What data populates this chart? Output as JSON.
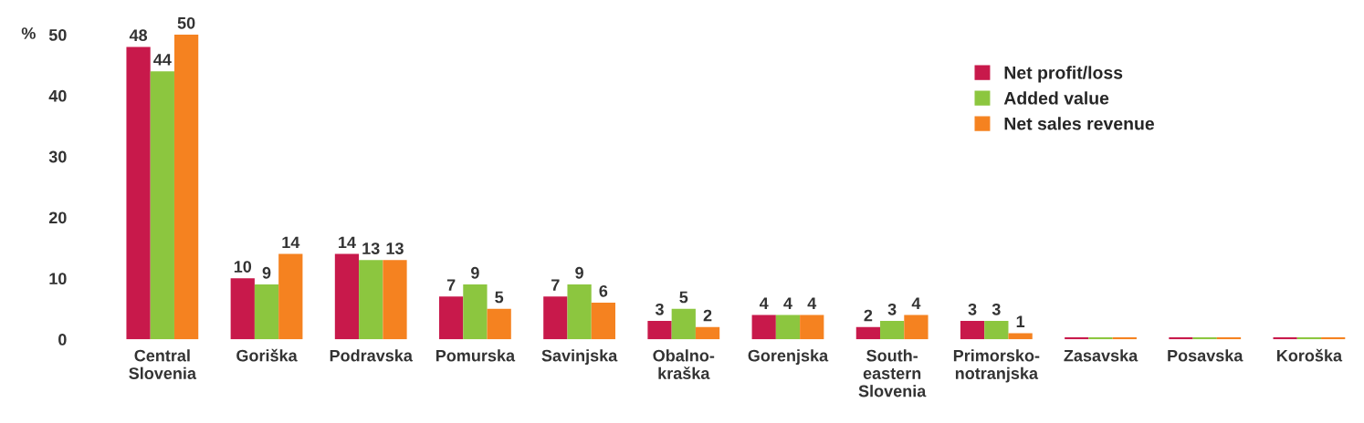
{
  "chart_data": {
    "type": "bar",
    "ylabel": "%",
    "categories": [
      "Central\nSlovenia",
      "Goriška",
      "Podravska",
      "Pomurska",
      "Savinjska",
      "Obalno-\nkraška",
      "Gorenjska",
      "South-\neastern\nSlovenia",
      "Primorsko-\nnotranjska",
      "Zasavska",
      "Posavska",
      "Koroška"
    ],
    "series": [
      {
        "name": "Net profit/loss",
        "color": "#c8194b",
        "values": [
          48,
          10,
          14,
          7,
          7,
          3,
          4,
          2,
          3,
          0.3,
          0.3,
          0.3
        ],
        "value_labels": [
          "48",
          "10",
          "14",
          "7",
          "7",
          "3",
          "4",
          "2",
          "3",
          null,
          null,
          null
        ]
      },
      {
        "name": "Added value",
        "color": "#8cc63f",
        "values": [
          44,
          9,
          13,
          9,
          9,
          5,
          4,
          3,
          3,
          0.3,
          0.3,
          0.3
        ],
        "value_labels": [
          "44",
          "9",
          "13",
          "9",
          "9",
          "5",
          "4",
          "3",
          "3",
          null,
          null,
          null
        ]
      },
      {
        "name": "Net sales revenue",
        "color": "#f58220",
        "values": [
          50,
          14,
          13,
          5,
          6,
          2,
          4,
          4,
          1,
          0.3,
          0.3,
          0.3
        ],
        "value_labels": [
          "50",
          "14",
          "13",
          "5",
          "6",
          "2",
          "4",
          "4",
          "1",
          null,
          null,
          null
        ]
      }
    ],
    "ylim": [
      0,
      50
    ],
    "yticks": [
      0,
      10,
      20,
      30,
      40,
      50
    ],
    "grid": false,
    "legend": "top right"
  }
}
